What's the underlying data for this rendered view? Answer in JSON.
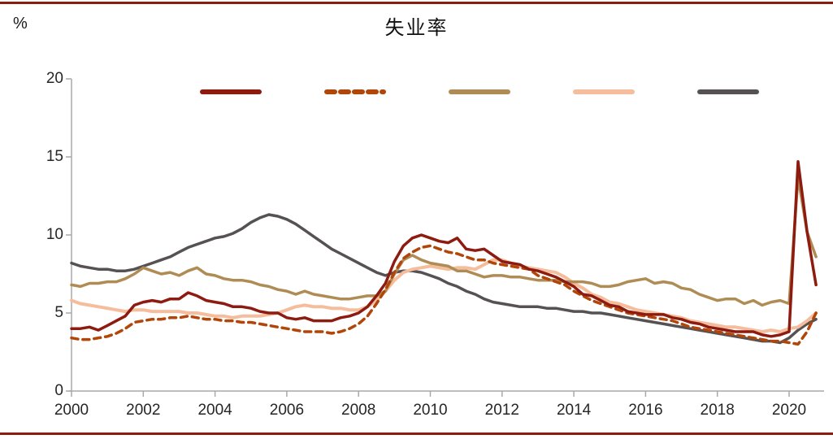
{
  "page": {
    "title": "失业率",
    "unit_label": "%"
  },
  "colors": {
    "border_rule": "#8E1B10",
    "axis_line": "#A9A9A9",
    "tick_text": "#262626"
  },
  "chart_data": {
    "type": "line",
    "title": "失业率",
    "ylabel": "%",
    "xlabel": "",
    "grid": false,
    "legend_position": "top",
    "legend_has_text": false,
    "ylim": [
      0,
      20
    ],
    "y_ticks": [
      0,
      5,
      10,
      15,
      20
    ],
    "x_ticks": [
      2000,
      2002,
      2004,
      2006,
      2008,
      2010,
      2012,
      2014,
      2016,
      2018,
      2020
    ],
    "xlim": [
      2000,
      2020.9
    ],
    "x_start": 2000,
    "x_step": 0.25,
    "series": [
      {
        "name": "series-1-dark-red-solid",
        "color": "#8E1B10",
        "style": "solid",
        "line_width": 3.5,
        "values": [
          4.0,
          4.0,
          4.1,
          3.9,
          4.2,
          4.5,
          4.8,
          5.5,
          5.7,
          5.8,
          5.7,
          5.9,
          5.9,
          6.3,
          6.1,
          5.8,
          5.7,
          5.6,
          5.4,
          5.4,
          5.3,
          5.1,
          5.0,
          5.0,
          4.7,
          4.6,
          4.7,
          4.5,
          4.5,
          4.5,
          4.7,
          4.8,
          5.0,
          5.4,
          6.1,
          6.9,
          8.3,
          9.3,
          9.8,
          10.0,
          9.8,
          9.6,
          9.5,
          9.8,
          9.1,
          9.0,
          9.1,
          8.7,
          8.3,
          8.2,
          8.1,
          7.8,
          7.7,
          7.5,
          7.3,
          7.0,
          6.7,
          6.2,
          6.1,
          5.8,
          5.5,
          5.4,
          5.1,
          5.0,
          4.9,
          4.9,
          4.9,
          4.7,
          4.6,
          4.4,
          4.3,
          4.1,
          4.0,
          3.9,
          3.8,
          3.8,
          3.8,
          3.6,
          3.5,
          3.6,
          3.8,
          14.7,
          10.2,
          6.8
        ]
      },
      {
        "name": "series-2-burnt-orange-dashed",
        "color": "#B24508",
        "style": "dashed",
        "line_width": 3.5,
        "values": [
          3.4,
          3.3,
          3.3,
          3.4,
          3.5,
          3.7,
          4.0,
          4.4,
          4.5,
          4.6,
          4.6,
          4.7,
          4.7,
          4.8,
          4.7,
          4.6,
          4.6,
          4.5,
          4.5,
          4.4,
          4.4,
          4.3,
          4.2,
          4.1,
          4.0,
          3.9,
          3.8,
          3.8,
          3.8,
          3.7,
          3.8,
          4.0,
          4.3,
          4.8,
          5.6,
          6.5,
          7.6,
          8.5,
          8.9,
          9.2,
          9.3,
          9.1,
          8.9,
          8.8,
          8.6,
          8.4,
          8.4,
          8.2,
          8.1,
          8.0,
          7.9,
          7.8,
          7.4,
          7.2,
          7.0,
          6.8,
          6.4,
          6.1,
          5.8,
          5.6,
          5.4,
          5.2,
          5.0,
          4.9,
          4.8,
          4.7,
          4.6,
          4.5,
          4.3,
          4.1,
          4.0,
          3.9,
          3.8,
          3.7,
          3.6,
          3.5,
          3.4,
          3.3,
          3.2,
          3.2,
          3.1,
          3.0,
          3.8,
          5.0
        ]
      },
      {
        "name": "series-3-tan-solid",
        "color": "#B08C55",
        "style": "solid",
        "line_width": 3.5,
        "values": [
          6.8,
          6.7,
          6.9,
          6.9,
          7.0,
          7.0,
          7.2,
          7.5,
          7.9,
          7.7,
          7.5,
          7.6,
          7.4,
          7.7,
          7.9,
          7.5,
          7.4,
          7.2,
          7.1,
          7.1,
          7.0,
          6.8,
          6.7,
          6.5,
          6.4,
          6.2,
          6.4,
          6.2,
          6.1,
          6.0,
          5.9,
          5.9,
          6.0,
          6.1,
          6.1,
          6.4,
          7.5,
          8.4,
          8.7,
          8.4,
          8.2,
          8.1,
          8.0,
          7.7,
          7.7,
          7.5,
          7.3,
          7.4,
          7.4,
          7.3,
          7.3,
          7.2,
          7.1,
          7.1,
          7.1,
          7.0,
          7.0,
          7.0,
          6.9,
          6.7,
          6.7,
          6.8,
          7.0,
          7.1,
          7.2,
          6.9,
          7.0,
          6.9,
          6.6,
          6.5,
          6.2,
          6.0,
          5.8,
          5.9,
          5.9,
          5.6,
          5.8,
          5.5,
          5.7,
          5.8,
          5.6,
          13.7,
          10.2,
          8.6
        ]
      },
      {
        "name": "series-4-peach-solid",
        "color": "#F5BD9C",
        "style": "solid",
        "line_width": 4,
        "values": [
          5.8,
          5.6,
          5.5,
          5.4,
          5.3,
          5.2,
          5.1,
          5.2,
          5.2,
          5.1,
          5.1,
          5.1,
          5.1,
          5.0,
          5.0,
          4.9,
          4.8,
          4.8,
          4.7,
          4.8,
          4.8,
          4.8,
          4.9,
          5.0,
          5.2,
          5.4,
          5.5,
          5.4,
          5.4,
          5.3,
          5.3,
          5.2,
          5.2,
          5.4,
          5.8,
          6.4,
          7.1,
          7.6,
          7.8,
          7.9,
          8.0,
          7.9,
          7.8,
          7.9,
          7.9,
          7.8,
          8.1,
          8.4,
          8.4,
          8.2,
          8.0,
          7.9,
          7.8,
          7.7,
          7.6,
          7.3,
          6.9,
          6.6,
          6.2,
          6.0,
          5.7,
          5.6,
          5.4,
          5.2,
          5.1,
          5.0,
          4.9,
          4.8,
          4.7,
          4.5,
          4.4,
          4.3,
          4.2,
          4.1,
          4.1,
          4.0,
          3.9,
          3.8,
          3.9,
          3.8,
          4.0,
          4.1,
          4.5,
          5.0
        ]
      },
      {
        "name": "series-5-gray-solid",
        "color": "#565253",
        "style": "solid",
        "line_width": 3.5,
        "values": [
          8.2,
          8.0,
          7.9,
          7.8,
          7.8,
          7.7,
          7.7,
          7.8,
          8.0,
          8.2,
          8.4,
          8.6,
          8.9,
          9.2,
          9.4,
          9.6,
          9.8,
          9.9,
          10.1,
          10.4,
          10.8,
          11.1,
          11.3,
          11.2,
          11.0,
          10.7,
          10.3,
          9.9,
          9.5,
          9.1,
          8.8,
          8.5,
          8.2,
          7.9,
          7.6,
          7.4,
          7.6,
          7.7,
          7.7,
          7.6,
          7.4,
          7.2,
          6.9,
          6.7,
          6.4,
          6.2,
          5.9,
          5.7,
          5.6,
          5.5,
          5.4,
          5.4,
          5.4,
          5.3,
          5.3,
          5.2,
          5.1,
          5.1,
          5.0,
          5.0,
          4.9,
          4.8,
          4.7,
          4.6,
          4.5,
          4.4,
          4.3,
          4.2,
          4.1,
          4.0,
          3.9,
          3.8,
          3.7,
          3.6,
          3.5,
          3.4,
          3.3,
          3.2,
          3.2,
          3.1,
          3.4,
          3.9,
          4.3,
          4.6
        ]
      }
    ],
    "draw_order": [
      4,
      3,
      2,
      1,
      0
    ]
  }
}
